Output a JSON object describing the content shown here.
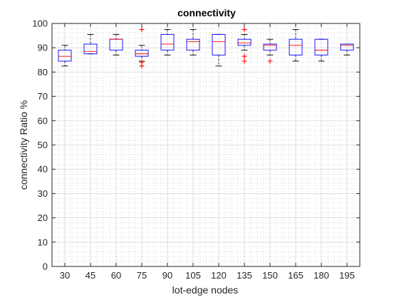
{
  "chart_data": {
    "type": "boxplot",
    "title": "connectivity",
    "xlabel": "lot-edge nodes",
    "ylabel": "connectivity Ratio %",
    "categories": [
      "30",
      "45",
      "60",
      "75",
      "90",
      "105",
      "120",
      "135",
      "150",
      "165",
      "180",
      "195"
    ],
    "ylim": [
      0,
      100
    ],
    "yticks": [
      0,
      10,
      20,
      30,
      40,
      50,
      60,
      70,
      80,
      90,
      100
    ],
    "grid": true,
    "minor_grid": true,
    "boxes": [
      {
        "category": "30",
        "whisker_low": 82.5,
        "q1": 84.5,
        "median": 86.5,
        "q3": 89.0,
        "whisker_high": 91.0,
        "outliers": []
      },
      {
        "category": "45",
        "whisker_low": 87.5,
        "q1": 87.5,
        "median": 88.5,
        "q3": 91.5,
        "whisker_high": 95.5,
        "outliers": []
      },
      {
        "category": "60",
        "whisker_low": 87.0,
        "q1": 89.0,
        "median": 93.5,
        "q3": 93.5,
        "whisker_high": 95.5,
        "outliers": []
      },
      {
        "category": "75",
        "whisker_low": 84.5,
        "q1": 86.5,
        "median": 87.5,
        "q3": 89.0,
        "whisker_high": 91.0,
        "outliers": [
          82.5,
          84.0,
          97.5
        ]
      },
      {
        "category": "90",
        "whisker_low": 87.0,
        "q1": 89.0,
        "median": 91.5,
        "q3": 95.5,
        "whisker_high": 97.5,
        "outliers": []
      },
      {
        "category": "105",
        "whisker_low": 87.0,
        "q1": 89.0,
        "median": 92.5,
        "q3": 93.5,
        "whisker_high": 97.5,
        "outliers": []
      },
      {
        "category": "120",
        "whisker_low": 82.5,
        "q1": 87.0,
        "median": 92.5,
        "q3": 95.5,
        "whisker_high": 95.5,
        "outliers": []
      },
      {
        "category": "135",
        "whisker_low": 89.0,
        "q1": 91.0,
        "median": 92.0,
        "q3": 93.5,
        "whisker_high": 95.5,
        "outliers": [
          84.5,
          86.5,
          97.5
        ]
      },
      {
        "category": "150",
        "whisker_low": 87.0,
        "q1": 89.0,
        "median": 91.0,
        "q3": 91.5,
        "whisker_high": 93.5,
        "outliers": [
          84.5
        ]
      },
      {
        "category": "165",
        "whisker_low": 84.5,
        "q1": 87.0,
        "median": 91.0,
        "q3": 93.5,
        "whisker_high": 97.5,
        "outliers": []
      },
      {
        "category": "180",
        "whisker_low": 84.5,
        "q1": 87.0,
        "median": 89.0,
        "q3": 93.5,
        "whisker_high": 93.5,
        "outliers": []
      },
      {
        "category": "195",
        "whisker_low": 87.0,
        "q1": 89.0,
        "median": 91.0,
        "q3": 91.5,
        "whisker_high": 91.5,
        "outliers": []
      }
    ],
    "colors": {
      "box": "#0000ff",
      "median": "#ff0000",
      "whisker": "#000000",
      "outlier": "#ff0000",
      "axis": "#262626",
      "grid": "#d9d9d9"
    }
  }
}
